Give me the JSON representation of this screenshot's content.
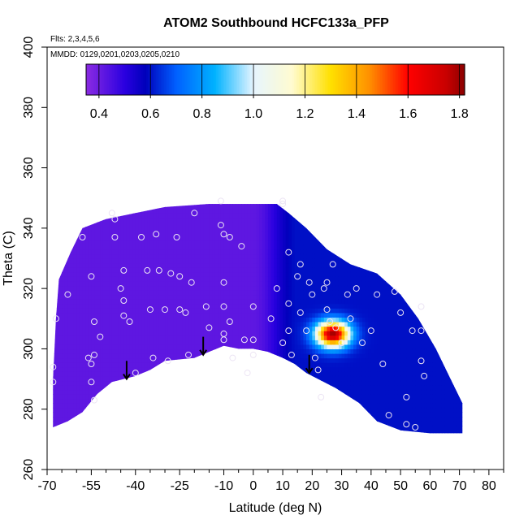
{
  "chart_data": {
    "type": "heatmap",
    "title": "ATOM2 Southbound HCFC133a_PFP",
    "subtitle_flights": "Flts: 2,3,4,5,6",
    "subtitle_dates": "MMDD: 0129,0201,0203,0205,0210",
    "xlabel": "Latitude (deg N)",
    "ylabel": "Theta (C)",
    "xlim": [
      -70,
      85
    ],
    "ylim": [
      260,
      400
    ],
    "x_major_ticks": [
      -70,
      -55,
      -40,
      -25,
      -10,
      0,
      10,
      20,
      30,
      40,
      50,
      60,
      70,
      80
    ],
    "x_minor_ticks": [
      -65,
      -60,
      -50,
      -45,
      -35,
      -30,
      -20,
      -15,
      -5,
      5,
      15,
      25,
      35,
      45,
      55,
      65,
      75,
      85
    ],
    "y_ticks": [
      260,
      280,
      300,
      320,
      340,
      360,
      380,
      400
    ],
    "colorbar": {
      "min": 0.35,
      "max": 1.82,
      "ticks": [
        0.4,
        0.6,
        0.8,
        1.0,
        1.2,
        1.4,
        1.6,
        1.8
      ],
      "stops": [
        {
          "v": 0.35,
          "color": "#8b2be2"
        },
        {
          "v": 0.5,
          "color": "#2a00e0"
        },
        {
          "v": 0.58,
          "color": "#0000bb"
        },
        {
          "v": 0.7,
          "color": "#0060ff"
        },
        {
          "v": 0.85,
          "color": "#00b2ff"
        },
        {
          "v": 1.0,
          "color": "#e6f5ff"
        },
        {
          "v": 1.15,
          "color": "#fffbd0"
        },
        {
          "v": 1.3,
          "color": "#ffe000"
        },
        {
          "v": 1.45,
          "color": "#ff9000"
        },
        {
          "v": 1.6,
          "color": "#ff0000"
        },
        {
          "v": 1.75,
          "color": "#c80000"
        },
        {
          "v": 1.82,
          "color": "#8b0000"
        }
      ]
    },
    "field": {
      "background_value": 0.45,
      "south_value": 0.42,
      "north_value": 0.6,
      "transition_lat": [
        0,
        15
      ],
      "top_envelope": [
        [
          -66,
          323
        ],
        [
          -62,
          332
        ],
        [
          -58,
          340
        ],
        [
          -50,
          343
        ],
        [
          -40,
          345
        ],
        [
          -30,
          347
        ],
        [
          -15,
          348
        ],
        [
          0,
          348
        ],
        [
          8,
          348
        ],
        [
          12,
          345
        ],
        [
          18,
          340
        ],
        [
          25,
          333
        ],
        [
          33,
          328
        ],
        [
          42,
          325
        ],
        [
          50,
          318
        ],
        [
          56,
          310
        ],
        [
          62,
          300
        ],
        [
          67,
          290
        ],
        [
          71,
          282
        ],
        [
          71,
          272
        ]
      ],
      "bottom_envelope": [
        [
          71,
          272
        ],
        [
          60,
          272
        ],
        [
          50,
          273
        ],
        [
          42,
          276
        ],
        [
          36,
          282
        ],
        [
          28,
          287
        ],
        [
          22,
          290
        ],
        [
          18,
          292
        ],
        [
          14,
          295
        ],
        [
          10,
          297
        ],
        [
          5,
          299
        ],
        [
          0,
          300
        ],
        [
          -5,
          300
        ],
        [
          -10,
          301
        ],
        [
          -15,
          299
        ],
        [
          -20,
          297
        ],
        [
          -30,
          296
        ],
        [
          -35,
          293
        ],
        [
          -40,
          291
        ],
        [
          -44,
          290
        ],
        [
          -48,
          289
        ],
        [
          -53,
          285
        ],
        [
          -58,
          279
        ],
        [
          -63,
          276
        ],
        [
          -68,
          274
        ],
        [
          -68,
          290
        ],
        [
          -67,
          310
        ],
        [
          -66,
          323
        ]
      ],
      "anomaly": {
        "lat": 27,
        "theta": 305,
        "peak": 1.8,
        "sd_lat": 4,
        "sd_theta": 3
      }
    },
    "samples": [
      [
        -68,
        289
      ],
      [
        -68,
        294
      ],
      [
        -67,
        310
      ],
      [
        -63,
        318
      ],
      [
        -58,
        337
      ],
      [
        -55,
        324
      ],
      [
        -54,
        309
      ],
      [
        -54,
        298
      ],
      [
        -55,
        295
      ],
      [
        -56,
        297
      ],
      [
        -55,
        289
      ],
      [
        -54,
        283
      ],
      [
        -52,
        304
      ],
      [
        -48,
        345
      ],
      [
        -47,
        343
      ],
      [
        -47,
        337
      ],
      [
        -44,
        326
      ],
      [
        -45,
        320
      ],
      [
        -44,
        316
      ],
      [
        -44,
        311
      ],
      [
        -42,
        309
      ],
      [
        -40,
        292
      ],
      [
        -38,
        337
      ],
      [
        -36,
        326
      ],
      [
        -35,
        313
      ],
      [
        -34,
        297
      ],
      [
        -33,
        338
      ],
      [
        -32,
        326
      ],
      [
        -30,
        313
      ],
      [
        -29,
        296
      ],
      [
        -28,
        325
      ],
      [
        -26,
        337
      ],
      [
        -25,
        324
      ],
      [
        -25,
        313
      ],
      [
        -23,
        312
      ],
      [
        -22,
        298
      ],
      [
        -21,
        322
      ],
      [
        -20,
        345
      ],
      [
        -16,
        314
      ],
      [
        -15,
        307
      ],
      [
        -11,
        349
      ],
      [
        -11,
        341
      ],
      [
        -10,
        338
      ],
      [
        -10,
        322
      ],
      [
        -10,
        314
      ],
      [
        -10,
        305
      ],
      [
        -10,
        303
      ],
      [
        -8,
        337
      ],
      [
        -8,
        309
      ],
      [
        -7,
        297
      ],
      [
        -4,
        334
      ],
      [
        -3,
        303
      ],
      [
        -2,
        292
      ],
      [
        0,
        314
      ],
      [
        0,
        303
      ],
      [
        0,
        298
      ],
      [
        6,
        310
      ],
      [
        8,
        320
      ],
      [
        10,
        349
      ],
      [
        10,
        348
      ],
      [
        10,
        302
      ],
      [
        12,
        332
      ],
      [
        12,
        315
      ],
      [
        12,
        306
      ],
      [
        13,
        298
      ],
      [
        15,
        324
      ],
      [
        16,
        312
      ],
      [
        16,
        328
      ],
      [
        18,
        306
      ],
      [
        19,
        322
      ],
      [
        20,
        318
      ],
      [
        21,
        297
      ],
      [
        22,
        293
      ],
      [
        23,
        284
      ],
      [
        24,
        320
      ],
      [
        25,
        313
      ],
      [
        25,
        322
      ],
      [
        26,
        309
      ],
      [
        27,
        328
      ],
      [
        28,
        307
      ],
      [
        30,
        302
      ],
      [
        32,
        318
      ],
      [
        33,
        310
      ],
      [
        35,
        320
      ],
      [
        37,
        302
      ],
      [
        40,
        306
      ],
      [
        42,
        318
      ],
      [
        44,
        295
      ],
      [
        46,
        278
      ],
      [
        48,
        319
      ],
      [
        50,
        312
      ],
      [
        52,
        284
      ],
      [
        52,
        275
      ],
      [
        54,
        306
      ],
      [
        55,
        274
      ],
      [
        57,
        306
      ],
      [
        57,
        296
      ],
      [
        58,
        291
      ],
      [
        57,
        314
      ]
    ],
    "arrows": [
      [
        -43,
        296
      ],
      [
        -17,
        304
      ],
      [
        19,
        298
      ]
    ]
  }
}
